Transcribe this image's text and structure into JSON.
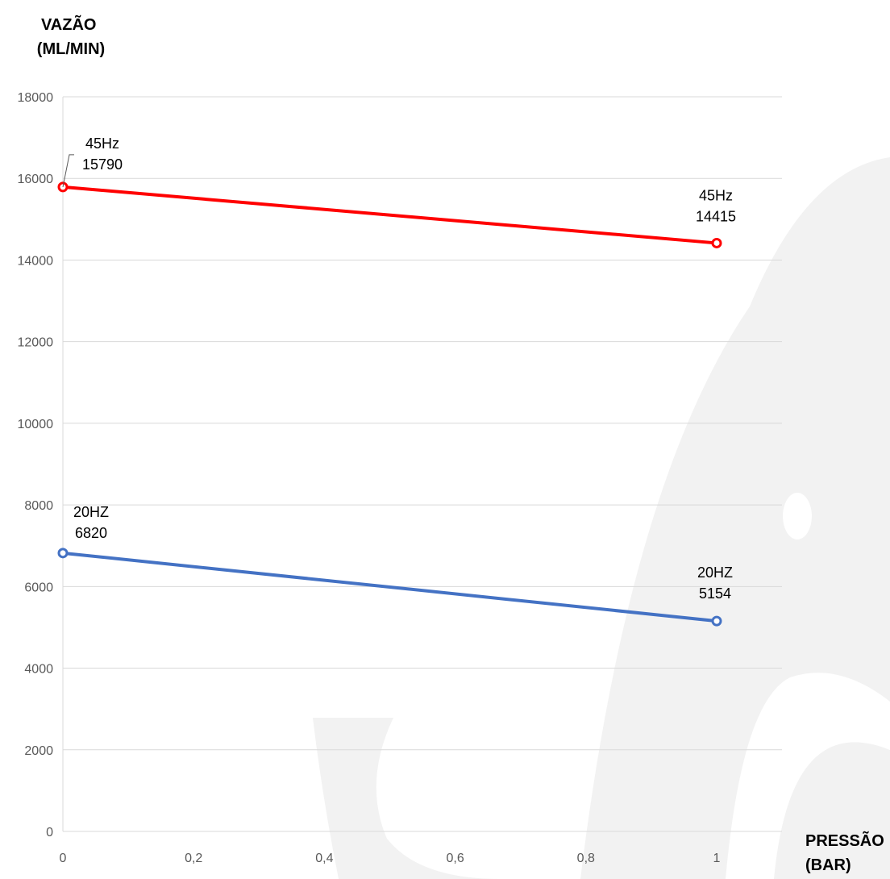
{
  "chart_data": {
    "type": "line",
    "ylabel_lines": [
      "VAZÃO",
      "(ML/MIN)"
    ],
    "xlabel_lines": [
      "PRESSÃO",
      "(BAR)"
    ],
    "x_ticks": [
      "0",
      "0,2",
      "0,4",
      "0,6",
      "0,8",
      "1"
    ],
    "y_ticks": [
      "0",
      "2000",
      "4000",
      "6000",
      "8000",
      "10000",
      "12000",
      "14000",
      "16000",
      "18000"
    ],
    "xlim": [
      0,
      1.1
    ],
    "ylim": [
      0,
      18000
    ],
    "grid": "horizontal",
    "series": [
      {
        "color": "#FF0000",
        "points": [
          {
            "x": 0,
            "y": 15790,
            "label": [
              "45Hz",
              "15790"
            ]
          },
          {
            "x": 1,
            "y": 14415,
            "label": [
              "45Hz",
              "14415"
            ]
          }
        ]
      },
      {
        "color": "#4472C4",
        "points": [
          {
            "x": 0,
            "y": 6820,
            "label": [
              "20HZ",
              "6820"
            ]
          },
          {
            "x": 1,
            "y": 5154,
            "label": [
              "20HZ",
              "5154"
            ]
          }
        ]
      }
    ]
  },
  "watermark_color": "#F2F2F2"
}
